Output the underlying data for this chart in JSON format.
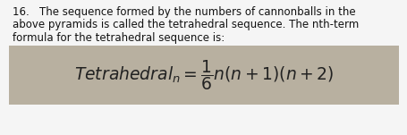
{
  "number": "16.",
  "text_line1": "   The sequence formed by the numbers of cannonballs in the",
  "text_line2": "above pyramids is called the tetrahedral sequence. The nth-term",
  "text_line3": "formula for the tetrahedral sequence is:",
  "formula": "$\\mathit{Tetrahedral}_n = \\dfrac{1}{6}n(n + 1)(n + 2)$",
  "bg_color": "#f5f5f5",
  "formula_bg": "#b8b0a0",
  "text_color": "#111111",
  "formula_color": "#222222",
  "font_size_text": 8.5,
  "font_size_formula": 13.5,
  "fig_width": 4.56,
  "fig_height": 1.51,
  "dpi": 100
}
